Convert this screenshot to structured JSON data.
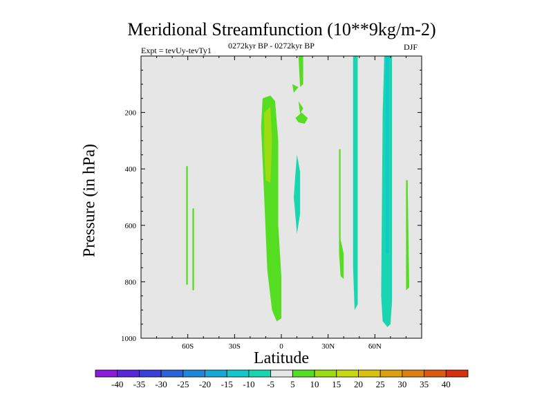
{
  "chart_data": {
    "type": "heatmap",
    "title": "Meridional Streamfunction (10**9kg/m-2)",
    "subtitle_left": "Expt = tevUy-tevTy1",
    "subtitle_center": "0272kyr BP - 0272kyr BP",
    "subtitle_right": "DJF",
    "xlabel": "Latitude",
    "ylabel": "Pressure (in hPa)",
    "xlim": [
      -90,
      90
    ],
    "ylim": [
      1000,
      0
    ],
    "x_ticks": [
      {
        "value": -60,
        "label": "60S"
      },
      {
        "value": -30,
        "label": "30S"
      },
      {
        "value": 0,
        "label": "0"
      },
      {
        "value": 30,
        "label": "30N"
      },
      {
        "value": 60,
        "label": "60N"
      }
    ],
    "y_ticks": [
      {
        "value": 200,
        "label": "200"
      },
      {
        "value": 400,
        "label": "400"
      },
      {
        "value": 600,
        "label": "600"
      },
      {
        "value": 800,
        "label": "800"
      },
      {
        "value": 1000,
        "label": "1000"
      }
    ],
    "background_color": "#e6e6e6",
    "colorbar": {
      "labels": [
        "-40",
        "-35",
        "-30",
        "-25",
        "-20",
        "-15",
        "-10",
        "-5",
        "5",
        "10",
        "15",
        "20",
        "25",
        "30",
        "35",
        "40"
      ],
      "colors": [
        "#8a1cd9",
        "#5a26d9",
        "#3a3ed9",
        "#2a62d9",
        "#1e86d9",
        "#15a8d9",
        "#12c8cc",
        "#1ad6b0",
        "#e6e6e6",
        "#55dd22",
        "#9bdd12",
        "#c8d810",
        "#dcc010",
        "#dca010",
        "#dc8010",
        "#dc5a10",
        "#d43010"
      ]
    },
    "regions": [
      {
        "level": "5 to 10",
        "color": "#55dd22",
        "points": [
          [
            -61,
            390
          ],
          [
            -60,
            390
          ],
          [
            -60,
            810
          ],
          [
            -61,
            810
          ]
        ]
      },
      {
        "level": "5 to 10",
        "color": "#55dd22",
        "points": [
          [
            -57,
            540
          ],
          [
            -56,
            540
          ],
          [
            -56,
            830
          ],
          [
            -57,
            830
          ]
        ]
      },
      {
        "level": "5 to 10",
        "color": "#55dd22",
        "points": [
          [
            -12,
            150
          ],
          [
            -7,
            140
          ],
          [
            -4,
            160
          ],
          [
            -2,
            300
          ],
          [
            -2,
            600
          ],
          [
            0,
            780
          ],
          [
            0,
            930
          ],
          [
            -3,
            940
          ],
          [
            -6,
            900
          ],
          [
            -9,
            760
          ],
          [
            -11,
            500
          ],
          [
            -13,
            250
          ]
        ]
      },
      {
        "level": "10 to 15",
        "color": "#9bdd12",
        "points": [
          [
            -11,
            200
          ],
          [
            -7,
            180
          ],
          [
            -6,
            300
          ],
          [
            -7,
            450
          ],
          [
            -10,
            440
          ],
          [
            -11,
            330
          ]
        ]
      },
      {
        "level": "5 to 10",
        "color": "#55dd22",
        "points": [
          [
            11,
            0
          ],
          [
            14,
            0
          ],
          [
            14,
            100
          ],
          [
            12,
            110
          ]
        ]
      },
      {
        "level": "5 to 10",
        "color": "#55dd22",
        "points": [
          [
            7,
            100
          ],
          [
            11,
            110
          ],
          [
            8,
            130
          ]
        ]
      },
      {
        "level": "5 to 10",
        "color": "#55dd22",
        "points": [
          [
            11,
            160
          ],
          [
            14,
            185
          ],
          [
            12,
            205
          ]
        ]
      },
      {
        "level": "5 to 10",
        "color": "#55dd22",
        "points": [
          [
            9,
            220
          ],
          [
            13,
            200
          ],
          [
            17,
            220
          ],
          [
            15,
            240
          ],
          [
            11,
            235
          ]
        ]
      },
      {
        "level": "-10 to -5",
        "color": "#1ad6b0",
        "points": [
          [
            10,
            350
          ],
          [
            12,
            410
          ],
          [
            12,
            560
          ],
          [
            10,
            630
          ],
          [
            8,
            500
          ],
          [
            9,
            420
          ]
        ]
      },
      {
        "level": "5 to 10",
        "color": "#55dd22",
        "points": [
          [
            37,
            330
          ],
          [
            38,
            330
          ],
          [
            38,
            650
          ],
          [
            40,
            700
          ],
          [
            40,
            790
          ],
          [
            38,
            780
          ],
          [
            37,
            700
          ]
        ]
      },
      {
        "level": "-10 to -5",
        "color": "#1ad6b0",
        "points": [
          [
            46,
            0
          ],
          [
            49,
            0
          ],
          [
            49,
            880
          ],
          [
            47,
            900
          ],
          [
            46,
            750
          ]
        ]
      },
      {
        "level": "-10 to -5",
        "color": "#1ad6b0",
        "points": [
          [
            66,
            0
          ],
          [
            71,
            0
          ],
          [
            71,
            870
          ],
          [
            70,
            950
          ],
          [
            68,
            960
          ],
          [
            65,
            940
          ],
          [
            64,
            850
          ],
          [
            65,
            200
          ]
        ]
      },
      {
        "level": "-15 to -10",
        "color": "#12c8cc",
        "points": [
          [
            67,
            0
          ],
          [
            69,
            0
          ],
          [
            69,
            700
          ],
          [
            67,
            700
          ]
        ]
      },
      {
        "level": "5 to 10",
        "color": "#55dd22",
        "points": [
          [
            80,
            440
          ],
          [
            81,
            440
          ],
          [
            82,
            820
          ],
          [
            80,
            830
          ]
        ]
      }
    ]
  }
}
